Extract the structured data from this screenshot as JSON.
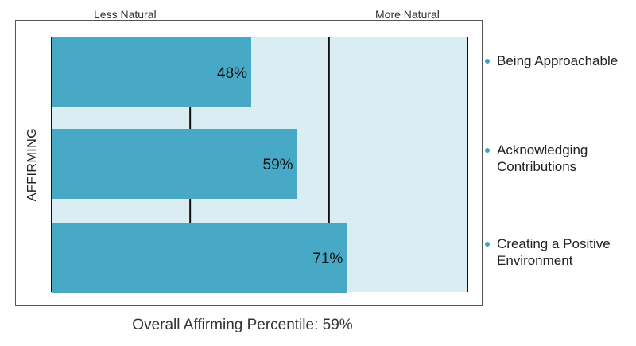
{
  "chart_data": {
    "type": "bar",
    "orientation": "horizontal",
    "ylabel": "AFFIRMING",
    "scale_low_label": "Less Natural",
    "scale_high_label": "More Natural",
    "xlim": [
      0,
      100
    ],
    "divider_lines": [
      33.3,
      66.7,
      100
    ],
    "categories": [
      "Being Approachable",
      "Acknowledging Contributions",
      "Creating a Positive Environment"
    ],
    "values": [
      48,
      59,
      71
    ],
    "value_labels": [
      "48%",
      "59%",
      "71%"
    ],
    "legend_placement": "right",
    "caption": "Overall Affirming Percentile: 59%"
  },
  "colors": {
    "bar": "#47a9c5",
    "background_band": "#daedf3",
    "divider": "#111111",
    "legend_dot": "#3fa0c3"
  }
}
